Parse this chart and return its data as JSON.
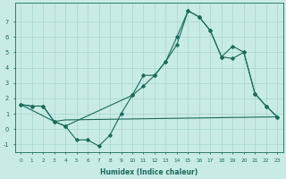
{
  "xlabel": "Humidex (Indice chaleur)",
  "xlim": [
    -0.5,
    23.5
  ],
  "ylim": [
    -1.5,
    8.2
  ],
  "yticks": [
    -1,
    0,
    1,
    2,
    3,
    4,
    5,
    6,
    7
  ],
  "xticks": [
    0,
    1,
    2,
    3,
    4,
    5,
    6,
    7,
    8,
    9,
    10,
    11,
    12,
    13,
    14,
    15,
    16,
    17,
    18,
    19,
    20,
    21,
    22,
    23
  ],
  "bg_color": "#c8ebe6",
  "grid_color": "#a8d5ce",
  "line_color": "#1a6b5a",
  "line1_x": [
    0,
    1,
    2,
    3,
    4,
    5,
    6,
    7,
    8,
    9,
    10,
    11,
    12,
    13,
    14,
    15,
    16,
    17,
    18,
    19,
    20,
    21,
    22,
    23
  ],
  "line1_y": [
    1.6,
    1.5,
    1.5,
    0.5,
    0.2,
    -0.7,
    -0.7,
    -1.1,
    -0.4,
    1.0,
    2.2,
    3.5,
    3.5,
    4.4,
    6.0,
    7.7,
    7.3,
    6.4,
    4.7,
    4.6,
    5.0,
    2.3,
    1.5,
    0.8
  ],
  "line2_x": [
    0,
    3,
    4,
    23
  ],
  "line2_y": [
    1.6,
    0.5,
    0.6,
    0.8
  ],
  "line3_x": [
    0,
    1,
    2,
    3,
    4,
    10,
    11,
    12,
    13,
    14,
    15,
    16,
    17,
    18,
    19,
    20,
    21,
    22,
    23
  ],
  "line3_y": [
    1.6,
    1.5,
    1.5,
    0.5,
    0.2,
    2.2,
    2.8,
    3.5,
    4.4,
    5.5,
    7.7,
    7.3,
    6.4,
    4.7,
    5.4,
    5.0,
    2.3,
    1.5,
    0.8
  ]
}
